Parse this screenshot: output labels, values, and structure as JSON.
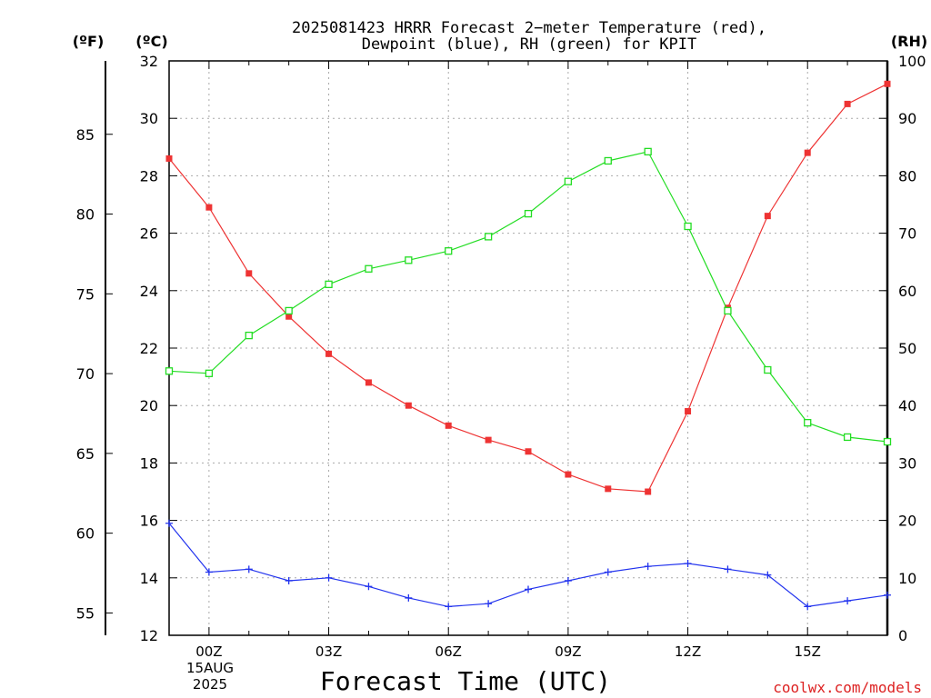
{
  "chart_data": {
    "type": "line",
    "title_line1": "2025081423 HRRR Forecast 2−meter Temperature (red),",
    "title_line2": "Dewpoint (blue), RH (green) for KPIT",
    "xlabel": "Forecast Time (UTC)",
    "unit_f": "(ºF)",
    "unit_c": "(ºC)",
    "unit_rh": "(RH)",
    "credit": "coolwx.com/models",
    "x_ticks": [
      {
        "h": 1,
        "label": "00Z"
      },
      {
        "h": 4,
        "label": "03Z"
      },
      {
        "h": 7,
        "label": "06Z"
      },
      {
        "h": 10,
        "label": "09Z"
      },
      {
        "h": 13,
        "label": "12Z"
      },
      {
        "h": 16,
        "label": "15Z"
      }
    ],
    "date_label_day": "15AUG",
    "date_label_year": "2025",
    "xlim": [
      0,
      18
    ],
    "y_left_c": {
      "ticks": [
        12,
        14,
        16,
        18,
        20,
        22,
        24,
        26,
        28,
        30,
        32
      ],
      "lim": [
        12,
        32
      ]
    },
    "y_left_f": {
      "ticks": [
        55,
        60,
        65,
        70,
        75,
        80,
        85
      ]
    },
    "y_right_rh": {
      "ticks": [
        0,
        10,
        20,
        30,
        40,
        50,
        60,
        70,
        80,
        90,
        100
      ],
      "lim": [
        0,
        100
      ]
    },
    "grid": true,
    "hours": [
      0,
      1,
      2,
      3,
      4,
      5,
      6,
      7,
      8,
      9,
      10,
      11,
      12,
      13,
      14,
      15,
      16,
      17,
      18
    ],
    "series": [
      {
        "name": "Temperature",
        "color": "#ee3333",
        "marker": "filled-square",
        "axis": "celsius",
        "values": [
          28.6,
          26.9,
          24.6,
          23.1,
          21.8,
          20.8,
          20.0,
          19.3,
          18.8,
          18.4,
          17.6,
          17.1,
          17.0,
          19.8,
          23.4,
          26.6,
          28.8,
          30.5,
          31.2
        ]
      },
      {
        "name": "Dewpoint",
        "color": "#2233ee",
        "marker": "plus",
        "axis": "celsius",
        "values": [
          15.9,
          14.2,
          14.3,
          13.9,
          14.0,
          13.7,
          13.3,
          13.0,
          13.1,
          13.6,
          13.9,
          14.2,
          14.4,
          14.5,
          14.3,
          14.1,
          13.0,
          13.2,
          13.4
        ]
      },
      {
        "name": "RH",
        "color": "#22dd22",
        "marker": "open-square",
        "axis": "rh",
        "values": [
          46,
          45.6,
          52.2,
          56.5,
          61.1,
          63.8,
          65.3,
          66.9,
          69.4,
          73.4,
          79.0,
          82.6,
          84.2,
          71.2,
          56.5,
          46.2,
          37.0,
          34.5,
          33.7
        ]
      }
    ]
  }
}
